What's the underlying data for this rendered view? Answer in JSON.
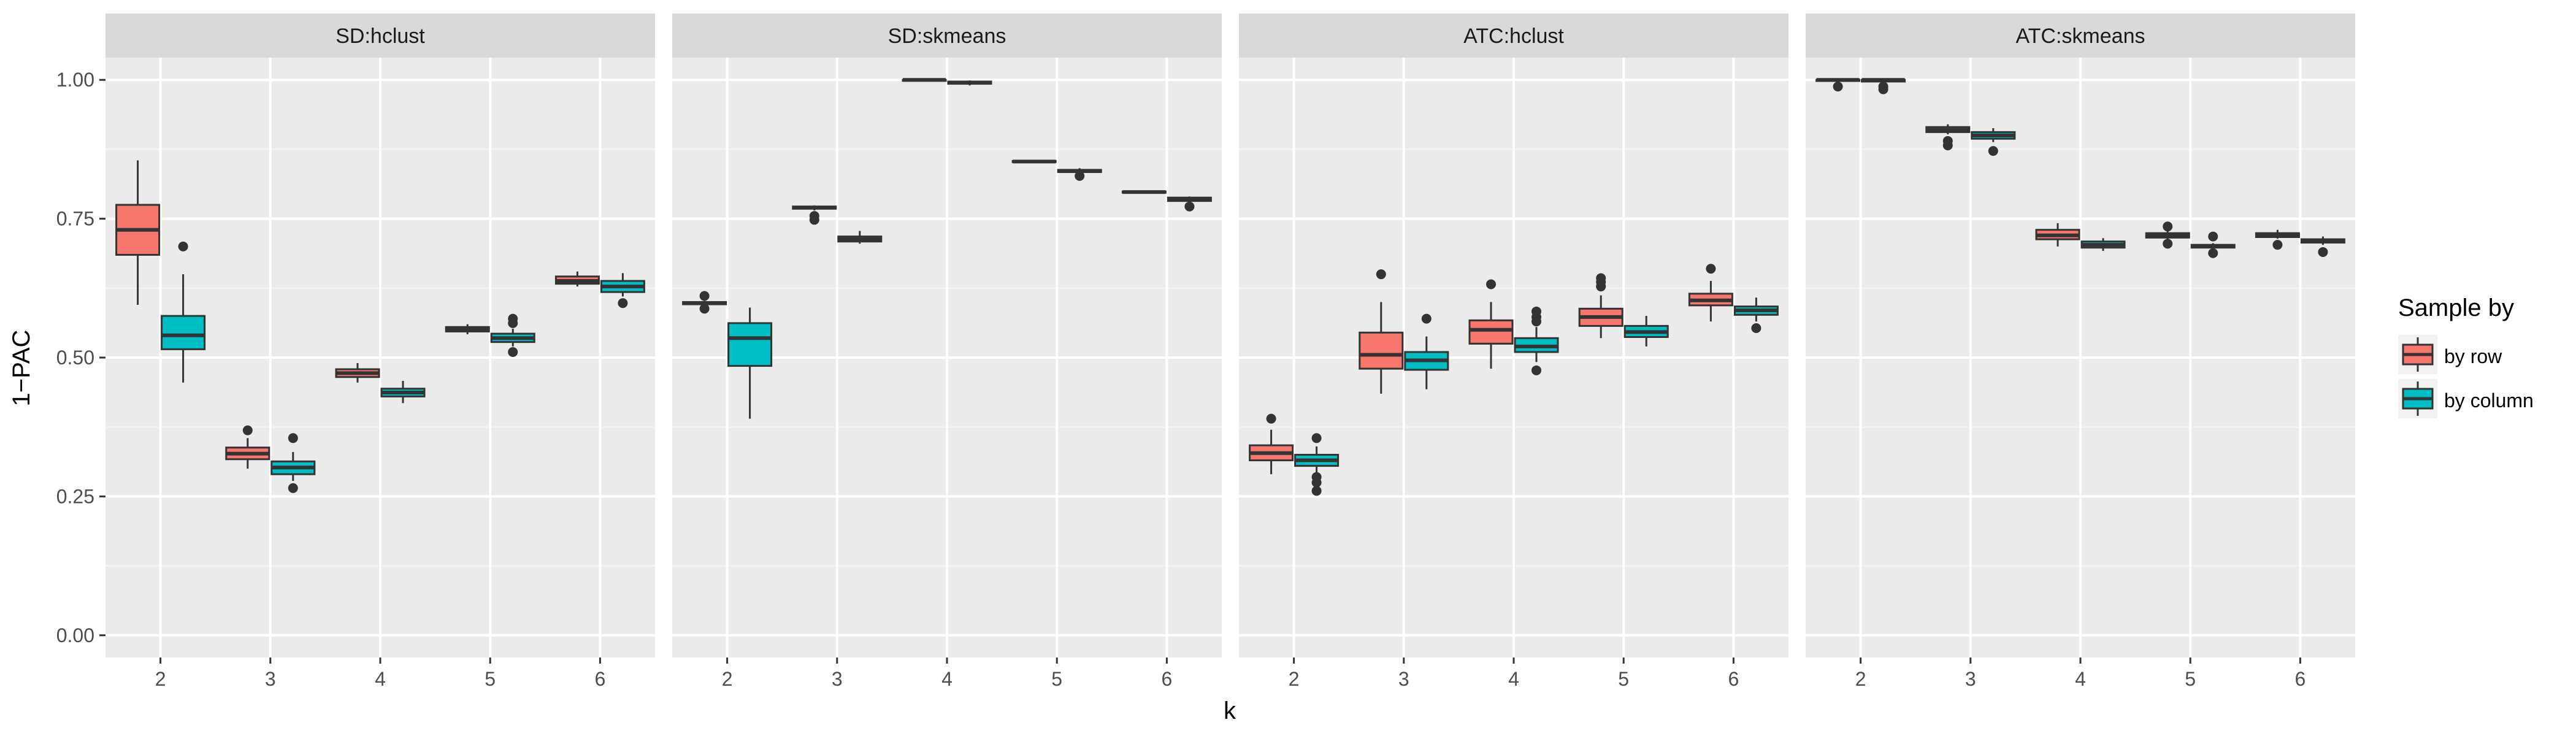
{
  "colors": {
    "panel_bg": "#EBEBEB",
    "strip_bg": "#D9D9D9",
    "grid_major": "#FFFFFF",
    "box_line": "#333333",
    "by_row": "#F8766D",
    "by_column": "#00BFC4"
  },
  "chart_data": {
    "type": "boxplot",
    "xlabel": "k",
    "ylabel": "1−PAC",
    "ylim": [
      -0.04,
      1.04
    ],
    "yticks": [
      0.0,
      0.25,
      0.5,
      0.75,
      1.0
    ],
    "ytick_labels": [
      "0.00",
      "0.25",
      "0.50",
      "0.75",
      "1.00"
    ],
    "categories": [
      "2",
      "3",
      "4",
      "5",
      "6"
    ],
    "grid": true,
    "legend": {
      "title": "Sample by",
      "position": "right",
      "entries": [
        {
          "key": "by_row",
          "label": "by row"
        },
        {
          "key": "by_column",
          "label": "by column"
        }
      ]
    },
    "panels": [
      {
        "title": "SD:hclust",
        "series": [
          {
            "key": "by_row",
            "boxes": [
              {
                "min": 0.595,
                "q1": 0.685,
                "median": 0.73,
                "q3": 0.775,
                "max": 0.855,
                "outliers": []
              },
              {
                "min": 0.3,
                "q1": 0.317,
                "median": 0.327,
                "q3": 0.338,
                "max": 0.355,
                "outliers": [
                  0.369
                ]
              },
              {
                "min": 0.455,
                "q1": 0.465,
                "median": 0.472,
                "q3": 0.479,
                "max": 0.49,
                "outliers": []
              },
              {
                "min": 0.542,
                "q1": 0.547,
                "median": 0.551,
                "q3": 0.555,
                "max": 0.56,
                "outliers": []
              },
              {
                "min": 0.628,
                "q1": 0.633,
                "median": 0.638,
                "q3": 0.646,
                "max": 0.655,
                "outliers": []
              }
            ]
          },
          {
            "key": "by_column",
            "boxes": [
              {
                "min": 0.455,
                "q1": 0.515,
                "median": 0.54,
                "q3": 0.575,
                "max": 0.65,
                "outliers": [
                  0.7
                ]
              },
              {
                "min": 0.278,
                "q1": 0.29,
                "median": 0.302,
                "q3": 0.313,
                "max": 0.33,
                "outliers": [
                  0.355,
                  0.265
                ]
              },
              {
                "min": 0.418,
                "q1": 0.43,
                "median": 0.437,
                "q3": 0.444,
                "max": 0.458,
                "outliers": []
              },
              {
                "min": 0.52,
                "q1": 0.528,
                "median": 0.535,
                "q3": 0.543,
                "max": 0.552,
                "outliers": [
                  0.57,
                  0.562,
                  0.51
                ]
              },
              {
                "min": 0.61,
                "q1": 0.618,
                "median": 0.628,
                "q3": 0.638,
                "max": 0.652,
                "outliers": [
                  0.598
                ]
              }
            ]
          }
        ]
      },
      {
        "title": "SD:skmeans",
        "series": [
          {
            "key": "by_row",
            "boxes": [
              {
                "min": 0.595,
                "q1": 0.596,
                "median": 0.598,
                "q3": 0.6,
                "max": 0.602,
                "outliers": [
                  0.611,
                  0.588
                ]
              },
              {
                "min": 0.765,
                "q1": 0.768,
                "median": 0.77,
                "q3": 0.772,
                "max": 0.774,
                "outliers": [
                  0.755,
                  0.748
                ]
              },
              {
                "min": 0.998,
                "q1": 0.999,
                "median": 1.0,
                "q3": 1.0,
                "max": 1.0,
                "outliers": []
              },
              {
                "min": 0.851,
                "q1": 0.852,
                "median": 0.853,
                "q3": 0.854,
                "max": 0.856,
                "outliers": []
              },
              {
                "min": 0.796,
                "q1": 0.797,
                "median": 0.798,
                "q3": 0.799,
                "max": 0.8,
                "outliers": []
              }
            ]
          },
          {
            "key": "by_column",
            "boxes": [
              {
                "min": 0.39,
                "q1": 0.485,
                "median": 0.535,
                "q3": 0.562,
                "max": 0.59,
                "outliers": []
              },
              {
                "min": 0.705,
                "q1": 0.709,
                "median": 0.713,
                "q3": 0.718,
                "max": 0.728,
                "outliers": []
              },
              {
                "min": 0.99,
                "q1": 0.993,
                "median": 0.995,
                "q3": 0.997,
                "max": 0.999,
                "outliers": []
              },
              {
                "min": 0.832,
                "q1": 0.834,
                "median": 0.836,
                "q3": 0.838,
                "max": 0.841,
                "outliers": [
                  0.827
                ]
              },
              {
                "min": 0.78,
                "q1": 0.782,
                "median": 0.785,
                "q3": 0.788,
                "max": 0.79,
                "outliers": [
                  0.772
                ]
              }
            ]
          }
        ]
      },
      {
        "title": "ATC:hclust",
        "series": [
          {
            "key": "by_row",
            "boxes": [
              {
                "min": 0.29,
                "q1": 0.315,
                "median": 0.328,
                "q3": 0.342,
                "max": 0.37,
                "outliers": [
                  0.39
                ]
              },
              {
                "min": 0.435,
                "q1": 0.48,
                "median": 0.505,
                "q3": 0.545,
                "max": 0.6,
                "outliers": [
                  0.65
                ]
              },
              {
                "min": 0.48,
                "q1": 0.525,
                "median": 0.55,
                "q3": 0.567,
                "max": 0.6,
                "outliers": [
                  0.632
                ]
              },
              {
                "min": 0.535,
                "q1": 0.557,
                "median": 0.573,
                "q3": 0.588,
                "max": 0.612,
                "outliers": [
                  0.643,
                  0.636,
                  0.628
                ]
              },
              {
                "min": 0.565,
                "q1": 0.594,
                "median": 0.603,
                "q3": 0.615,
                "max": 0.638,
                "outliers": [
                  0.66
                ]
              }
            ]
          },
          {
            "key": "by_column",
            "boxes": [
              {
                "min": 0.292,
                "q1": 0.305,
                "median": 0.315,
                "q3": 0.325,
                "max": 0.34,
                "outliers": [
                  0.355,
                  0.285,
                  0.275,
                  0.26
                ]
              },
              {
                "min": 0.443,
                "q1": 0.478,
                "median": 0.495,
                "q3": 0.51,
                "max": 0.538,
                "outliers": [
                  0.57
                ]
              },
              {
                "min": 0.492,
                "q1": 0.51,
                "median": 0.52,
                "q3": 0.535,
                "max": 0.555,
                "outliers": [
                  0.583,
                  0.573,
                  0.565,
                  0.477
                ]
              },
              {
                "min": 0.52,
                "q1": 0.537,
                "median": 0.546,
                "q3": 0.557,
                "max": 0.575,
                "outliers": []
              },
              {
                "min": 0.565,
                "q1": 0.577,
                "median": 0.585,
                "q3": 0.592,
                "max": 0.608,
                "outliers": [
                  0.553
                ]
              }
            ]
          }
        ]
      },
      {
        "title": "ATC:skmeans",
        "series": [
          {
            "key": "by_row",
            "boxes": [
              {
                "min": 0.996,
                "q1": 0.998,
                "median": 1.0,
                "q3": 1.0,
                "max": 1.0,
                "outliers": [
                  0.988
                ]
              },
              {
                "min": 0.902,
                "q1": 0.906,
                "median": 0.91,
                "q3": 0.915,
                "max": 0.92,
                "outliers": [
                  0.89,
                  0.882
                ]
              },
              {
                "min": 0.7,
                "q1": 0.713,
                "median": 0.72,
                "q3": 0.73,
                "max": 0.742,
                "outliers": []
              },
              {
                "min": 0.712,
                "q1": 0.716,
                "median": 0.72,
                "q3": 0.724,
                "max": 0.728,
                "outliers": [
                  0.736,
                  0.705
                ]
              },
              {
                "min": 0.714,
                "q1": 0.717,
                "median": 0.72,
                "q3": 0.724,
                "max": 0.73,
                "outliers": [
                  0.703
                ]
              }
            ]
          },
          {
            "key": "by_column",
            "boxes": [
              {
                "min": 0.994,
                "q1": 0.997,
                "median": 1.0,
                "q3": 1.0,
                "max": 1.0,
                "outliers": [
                  0.988,
                  0.983
                ]
              },
              {
                "min": 0.888,
                "q1": 0.894,
                "median": 0.9,
                "q3": 0.906,
                "max": 0.913,
                "outliers": [
                  0.872
                ]
              },
              {
                "min": 0.692,
                "q1": 0.698,
                "median": 0.703,
                "q3": 0.709,
                "max": 0.715,
                "outliers": []
              },
              {
                "min": 0.696,
                "q1": 0.698,
                "median": 0.7,
                "q3": 0.703,
                "max": 0.706,
                "outliers": [
                  0.718,
                  0.688
                ]
              },
              {
                "min": 0.703,
                "q1": 0.707,
                "median": 0.71,
                "q3": 0.713,
                "max": 0.718,
                "outliers": [
                  0.69
                ]
              }
            ]
          }
        ]
      }
    ]
  }
}
